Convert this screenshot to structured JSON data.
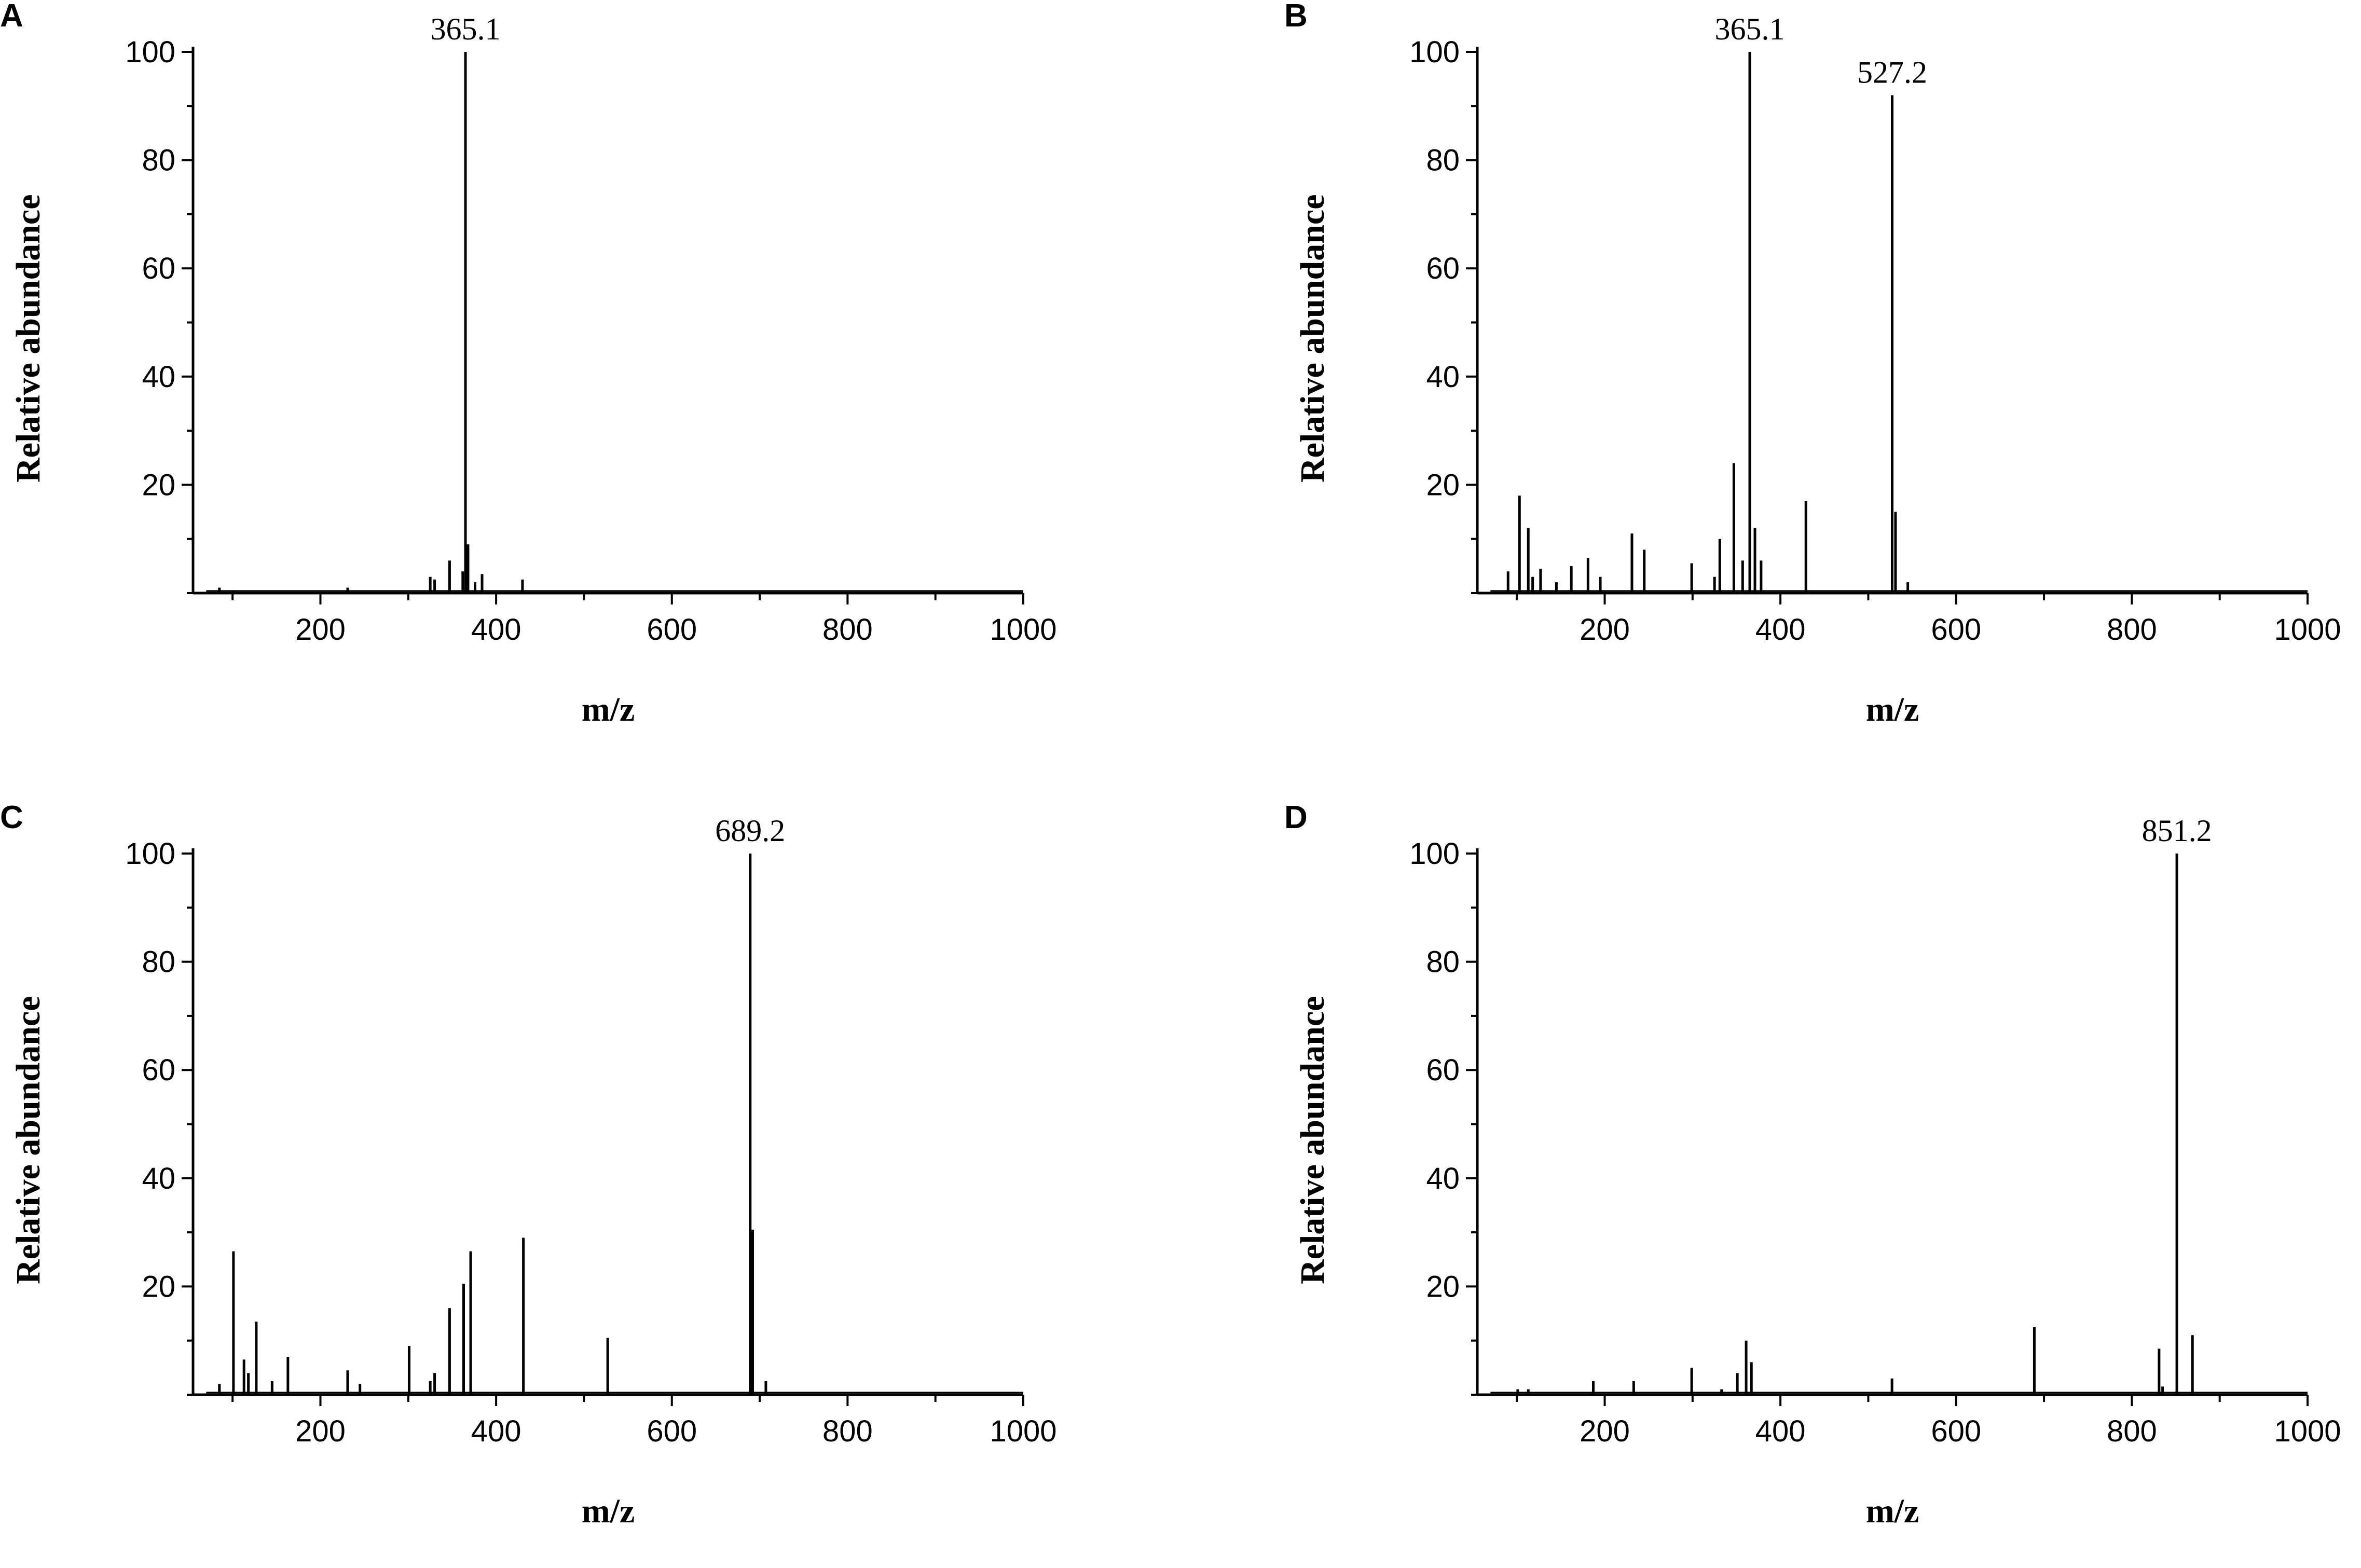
{
  "chart_data": [
    {
      "panel": "A",
      "type": "bar",
      "xlabel": "m/z",
      "ylabel": "Relative abundance",
      "xlim": [
        55,
        1000
      ],
      "ylim": [
        0,
        100
      ],
      "xticks": [
        200,
        400,
        600,
        800,
        1000
      ],
      "yticks": [
        20,
        40,
        60,
        80,
        100
      ],
      "peak_labels": [
        {
          "x": 365.1,
          "y": 100,
          "text": "365.1"
        }
      ],
      "peaks": [
        {
          "x": 85,
          "y": 1
        },
        {
          "x": 101,
          "y": 0.5
        },
        {
          "x": 231,
          "y": 1
        },
        {
          "x": 325,
          "y": 3
        },
        {
          "x": 330,
          "y": 2.5
        },
        {
          "x": 347,
          "y": 6
        },
        {
          "x": 362,
          "y": 4
        },
        {
          "x": 365.1,
          "y": 100
        },
        {
          "x": 368,
          "y": 9
        },
        {
          "x": 376,
          "y": 2
        },
        {
          "x": 384,
          "y": 3.5
        },
        {
          "x": 430,
          "y": 2.5
        }
      ]
    },
    {
      "panel": "B",
      "type": "bar",
      "xlabel": "m/z",
      "ylabel": "Relative abundance",
      "xlim": [
        55,
        1000
      ],
      "ylim": [
        0,
        100
      ],
      "xticks": [
        200,
        400,
        600,
        800,
        1000
      ],
      "yticks": [
        20,
        40,
        60,
        80,
        100
      ],
      "peak_labels": [
        {
          "x": 365.1,
          "y": 100,
          "text": "365.1"
        },
        {
          "x": 527.2,
          "y": 92,
          "text": "527.2"
        }
      ],
      "peaks": [
        {
          "x": 90,
          "y": 4
        },
        {
          "x": 103,
          "y": 18
        },
        {
          "x": 113,
          "y": 12
        },
        {
          "x": 118,
          "y": 3
        },
        {
          "x": 127,
          "y": 4.5
        },
        {
          "x": 145,
          "y": 2
        },
        {
          "x": 162,
          "y": 5
        },
        {
          "x": 181,
          "y": 6.5
        },
        {
          "x": 195,
          "y": 3
        },
        {
          "x": 231,
          "y": 11
        },
        {
          "x": 245,
          "y": 8
        },
        {
          "x": 299,
          "y": 5.5
        },
        {
          "x": 325,
          "y": 3
        },
        {
          "x": 331,
          "y": 10
        },
        {
          "x": 347,
          "y": 24
        },
        {
          "x": 357,
          "y": 6
        },
        {
          "x": 365.1,
          "y": 100
        },
        {
          "x": 371,
          "y": 12
        },
        {
          "x": 378,
          "y": 6
        },
        {
          "x": 429,
          "y": 17
        },
        {
          "x": 527.2,
          "y": 92
        },
        {
          "x": 531,
          "y": 15
        },
        {
          "x": 545,
          "y": 2
        }
      ]
    },
    {
      "panel": "C",
      "type": "bar",
      "xlabel": "m/z",
      "ylabel": "Relative abundance",
      "xlim": [
        55,
        1000
      ],
      "ylim": [
        0,
        100
      ],
      "xticks": [
        200,
        400,
        600,
        800,
        1000
      ],
      "yticks": [
        20,
        40,
        60,
        80,
        100
      ],
      "peak_labels": [
        {
          "x": 689.2,
          "y": 100,
          "text": "689.2"
        }
      ],
      "peaks": [
        {
          "x": 85,
          "y": 2
        },
        {
          "x": 101,
          "y": 26.5
        },
        {
          "x": 113,
          "y": 6.5
        },
        {
          "x": 118,
          "y": 4
        },
        {
          "x": 127,
          "y": 13.5
        },
        {
          "x": 145,
          "y": 2.5
        },
        {
          "x": 163,
          "y": 7
        },
        {
          "x": 231,
          "y": 4.5
        },
        {
          "x": 245,
          "y": 2
        },
        {
          "x": 301,
          "y": 9
        },
        {
          "x": 325,
          "y": 2.5
        },
        {
          "x": 330,
          "y": 4
        },
        {
          "x": 347,
          "y": 16
        },
        {
          "x": 363,
          "y": 20.5
        },
        {
          "x": 371,
          "y": 26.5
        },
        {
          "x": 431,
          "y": 29
        },
        {
          "x": 527,
          "y": 10.5
        },
        {
          "x": 689.2,
          "y": 100
        },
        {
          "x": 692,
          "y": 30.5
        },
        {
          "x": 707,
          "y": 2.5
        }
      ]
    },
    {
      "panel": "D",
      "type": "bar",
      "xlabel": "m/z",
      "ylabel": "Relative abundance",
      "xlim": [
        55,
        1000
      ],
      "ylim": [
        0,
        100
      ],
      "xticks": [
        200,
        400,
        600,
        800,
        1000
      ],
      "yticks": [
        20,
        40,
        60,
        80,
        100
      ],
      "peak_labels": [
        {
          "x": 851.2,
          "y": 100,
          "text": "851.2"
        }
      ],
      "peaks": [
        {
          "x": 101,
          "y": 1
        },
        {
          "x": 113,
          "y": 1
        },
        {
          "x": 187,
          "y": 2.5
        },
        {
          "x": 233,
          "y": 2.5
        },
        {
          "x": 299,
          "y": 5
        },
        {
          "x": 333,
          "y": 1
        },
        {
          "x": 351,
          "y": 4
        },
        {
          "x": 361,
          "y": 10
        },
        {
          "x": 367,
          "y": 6
        },
        {
          "x": 527,
          "y": 3
        },
        {
          "x": 689,
          "y": 12.5
        },
        {
          "x": 831,
          "y": 8.5
        },
        {
          "x": 835,
          "y": 1.5
        },
        {
          "x": 851.2,
          "y": 100
        },
        {
          "x": 869,
          "y": 11
        }
      ]
    }
  ]
}
